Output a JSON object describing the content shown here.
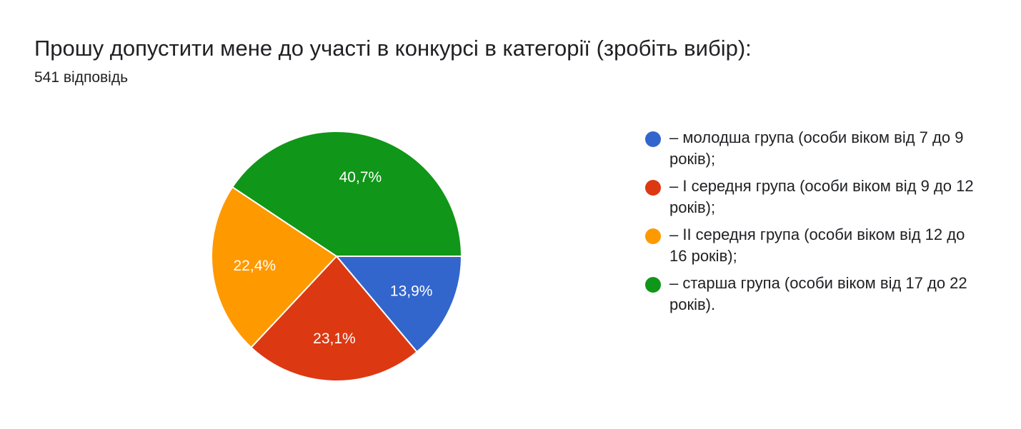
{
  "question": {
    "title": "Прошу допустити мене до участі в конкурсі в категорії (зробіть вибір):",
    "responses": "541 відповідь"
  },
  "chart_data": {
    "type": "pie",
    "slices": [
      {
        "label": "– молодша група (особи віком від 7 до 9 років);",
        "value": 13.9,
        "display": "13,9%",
        "color": "#3366cc"
      },
      {
        "label": "– І середня група (особи віком від 9 до 12 років);",
        "value": 23.1,
        "display": "23,1%",
        "color": "#dc3912"
      },
      {
        "label": "– ІІ середня група (особи віком від 12 до 16 років);",
        "value": 22.4,
        "display": "22,4%",
        "color": "#ff9900"
      },
      {
        "label": "– старша група (особи віком від 17 до 22 років).",
        "value": 40.7,
        "display": "40,7%",
        "color": "#109618"
      }
    ],
    "legend_position": "right"
  }
}
